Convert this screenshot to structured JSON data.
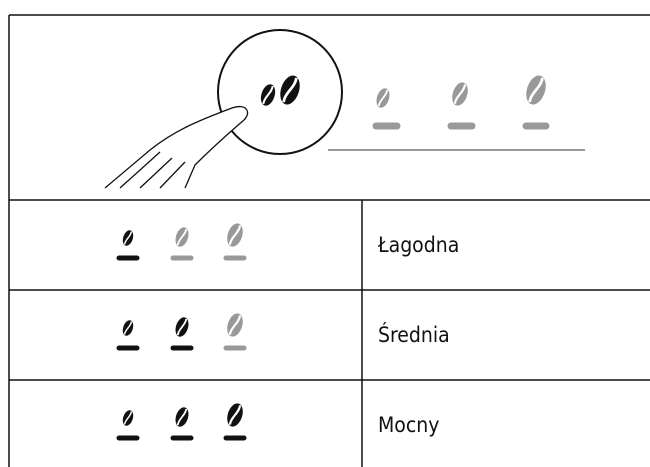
{
  "table": {
    "rows": [
      {
        "label": "Łagodna"
      },
      {
        "label": "Średnia"
      },
      {
        "label": "Mocny"
      }
    ]
  }
}
